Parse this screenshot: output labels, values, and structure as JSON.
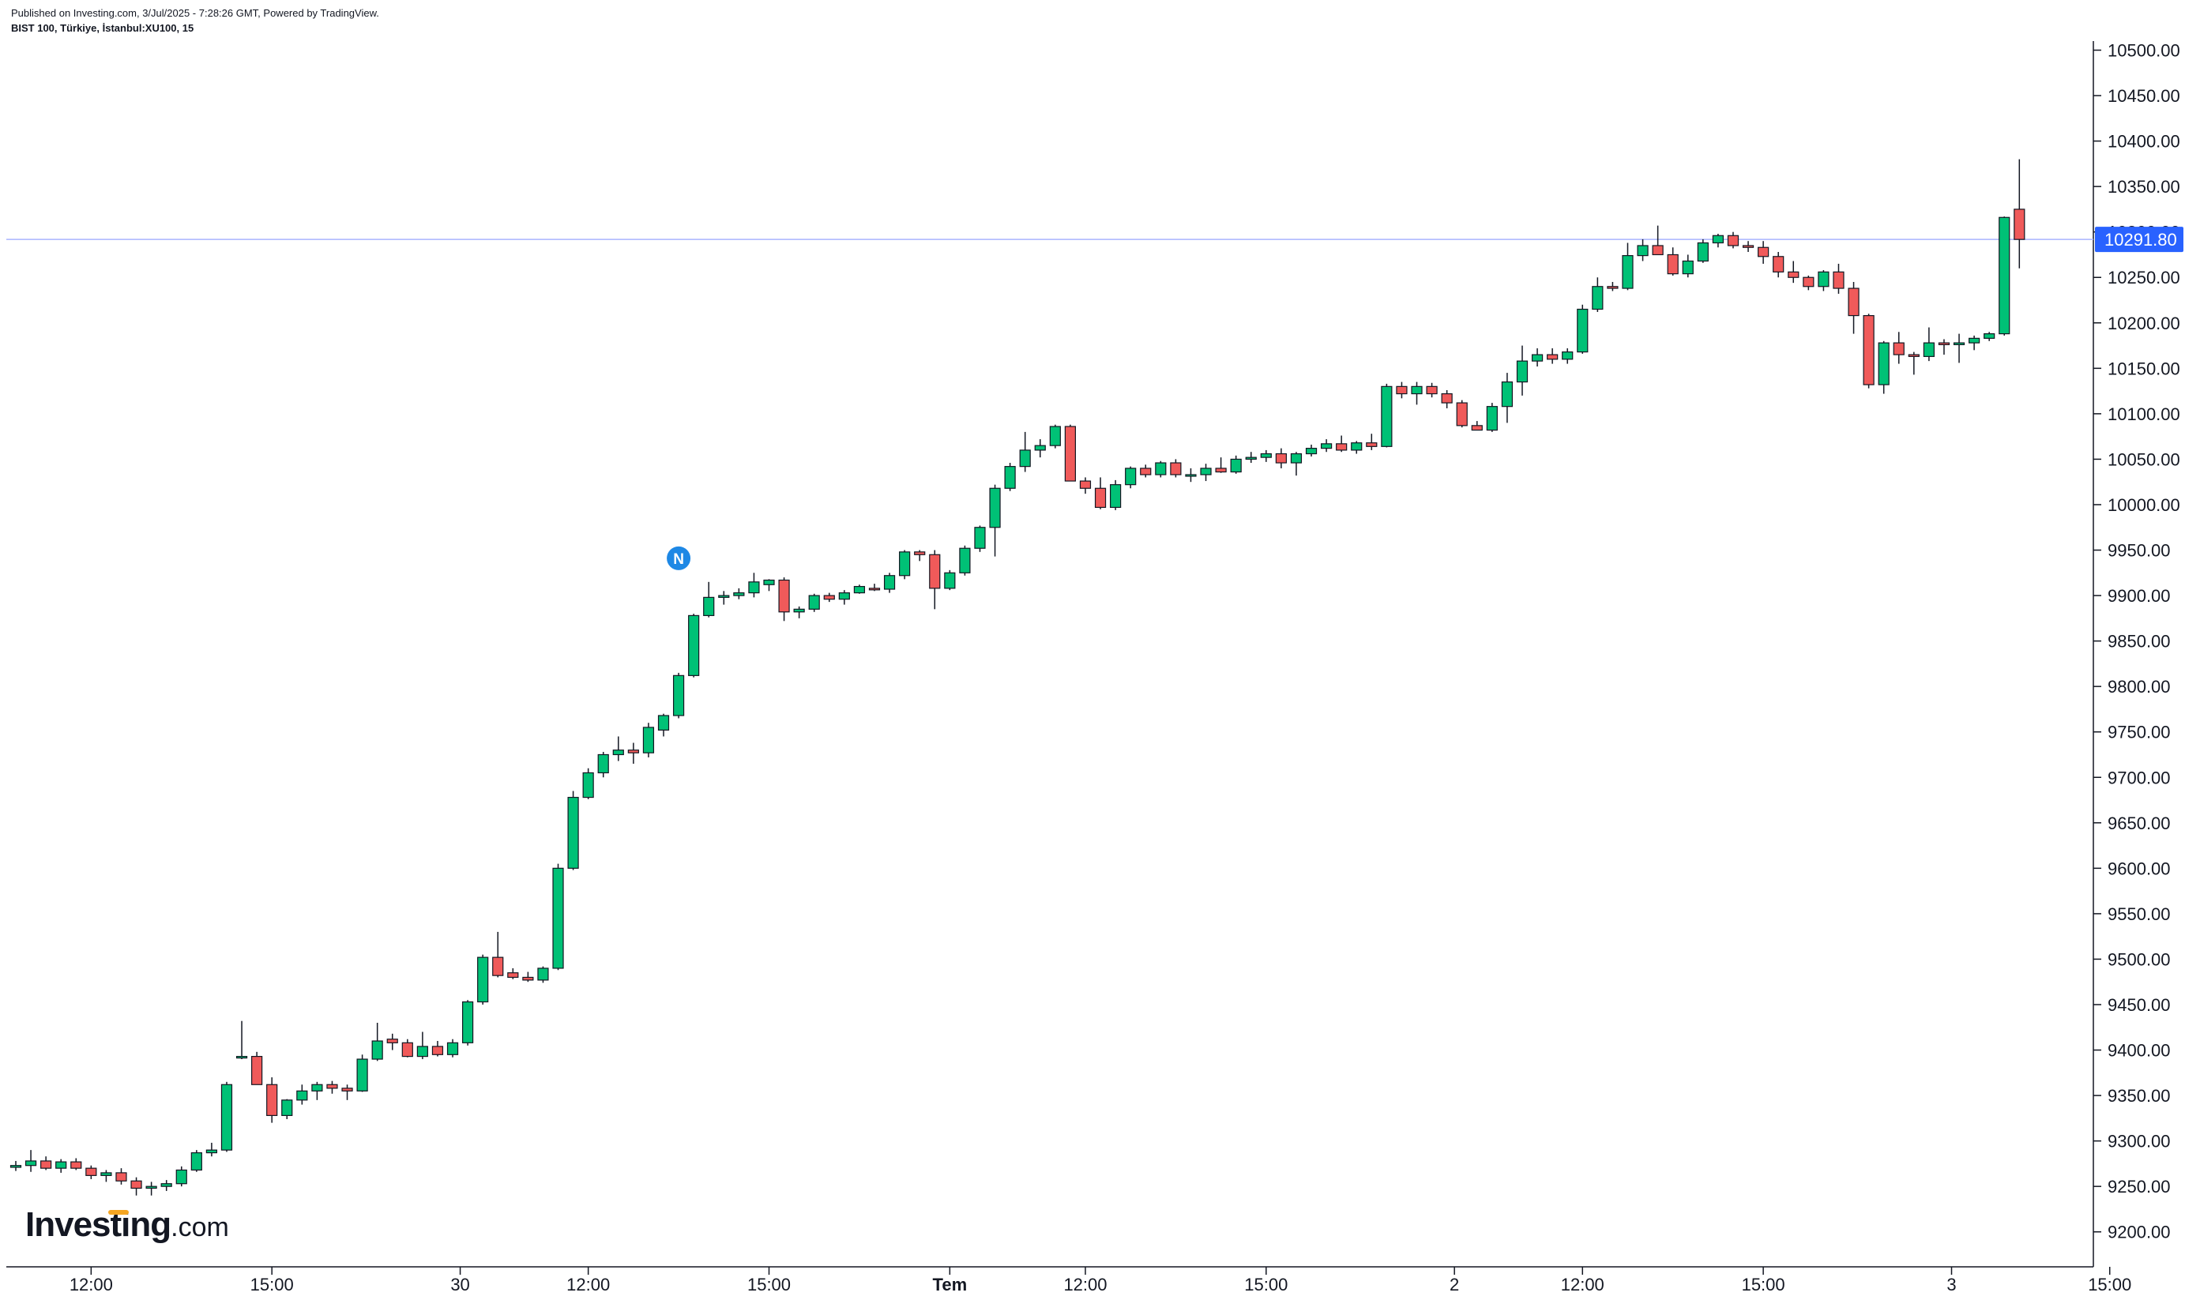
{
  "header": {
    "published": "Published on Investing.com, 3/Jul/2025 - 7:28:26 GMT, Powered by TradingView.",
    "symbol": "BIST 100, Türkiye, İstanbul:XU100, 15"
  },
  "logo": {
    "word": "Investing",
    "tld": ".com"
  },
  "colors": {
    "up": "#089981",
    "upFill": "#00c176",
    "down": "#d62d2d",
    "downFill": "#f05a5a",
    "priceLine": "#aab4ff",
    "priceTag": "#2962ff",
    "marker": "#1e88e5"
  },
  "chart_data": {
    "type": "candlestick",
    "title": "",
    "ylim": [
      9165,
      10510
    ],
    "y_ticks": [
      9200,
      9250,
      9300,
      9350,
      9400,
      9450,
      9500,
      9550,
      9600,
      9650,
      9700,
      9750,
      9800,
      9850,
      9900,
      9950,
      10000,
      10050,
      10100,
      10150,
      10200,
      10250,
      10300,
      10350,
      10400,
      10450,
      10500
    ],
    "y_tick_labels": [
      "9200.00",
      "9250.00",
      "9300.00",
      "9350.00",
      "9400.00",
      "9450.00",
      "9500.00",
      "9550.00",
      "9600.00",
      "9650.00",
      "9700.00",
      "9750.00",
      "9800.00",
      "9850.00",
      "9900.00",
      "9950.00",
      "10000.00",
      "10050.00",
      "10100.00",
      "10150.00",
      "10200.00",
      "10250.00",
      "10300.00",
      "10350.00",
      "10400.00",
      "10450.00",
      "10500.00"
    ],
    "x_ticks": [
      {
        "label": "12:00",
        "index": 5,
        "bold": false
      },
      {
        "label": "15:00",
        "index": 17,
        "bold": false
      },
      {
        "label": "30",
        "index": 29.5,
        "bold": false
      },
      {
        "label": "12:00",
        "index": 38,
        "bold": false
      },
      {
        "label": "15:00",
        "index": 50,
        "bold": false
      },
      {
        "label": "Tem",
        "index": 62,
        "bold": true
      },
      {
        "label": "12:00",
        "index": 71,
        "bold": false
      },
      {
        "label": "15:00",
        "index": 83,
        "bold": false
      },
      {
        "label": "2",
        "index": 95.5,
        "bold": false
      },
      {
        "label": "12:00",
        "index": 104,
        "bold": false
      },
      {
        "label": "15:00",
        "index": 116,
        "bold": false
      },
      {
        "label": "3",
        "index": 128.5,
        "bold": false
      },
      {
        "label": "15:00",
        "index": 139,
        "bold": false
      }
    ],
    "last_price": 10291.8,
    "last_price_label": "10291.80",
    "news_marker": {
      "label": "N",
      "index": 44,
      "price": 9941
    },
    "ohlc": [
      [
        9271,
        9278,
        9267,
        9273
      ],
      [
        9273,
        9290,
        9266,
        9278
      ],
      [
        9278,
        9283,
        9268,
        9270
      ],
      [
        9270,
        9280,
        9265,
        9277
      ],
      [
        9277,
        9281,
        9268,
        9270
      ],
      [
        9270,
        9273,
        9258,
        9262
      ],
      [
        9262,
        9268,
        9255,
        9265
      ],
      [
        9265,
        9270,
        9252,
        9256
      ],
      [
        9256,
        9260,
        9240,
        9248
      ],
      [
        9248,
        9255,
        9240,
        9250
      ],
      [
        9250,
        9257,
        9245,
        9253
      ],
      [
        9253,
        9272,
        9250,
        9268
      ],
      [
        9268,
        9290,
        9266,
        9287
      ],
      [
        9287,
        9298,
        9283,
        9290
      ],
      [
        9290,
        9365,
        9288,
        9362
      ],
      [
        9393,
        9432,
        9390,
        9393
      ],
      [
        9393,
        9398,
        9365,
        9362
      ],
      [
        9362,
        9370,
        9320,
        9328
      ],
      [
        9328,
        9346,
        9324,
        9345
      ],
      [
        9345,
        9362,
        9340,
        9355
      ],
      [
        9355,
        9365,
        9345,
        9362
      ],
      [
        9362,
        9366,
        9352,
        9358
      ],
      [
        9358,
        9362,
        9345,
        9355
      ],
      [
        9355,
        9395,
        9354,
        9390
      ],
      [
        9390,
        9430,
        9388,
        9410
      ],
      [
        9412,
        9418,
        9400,
        9408
      ],
      [
        9408,
        9412,
        9392,
        9393
      ],
      [
        9393,
        9420,
        9390,
        9404
      ],
      [
        9404,
        9410,
        9393,
        9395
      ],
      [
        9395,
        9412,
        9392,
        9408
      ],
      [
        9408,
        9455,
        9405,
        9453
      ],
      [
        9453,
        9505,
        9450,
        9502
      ],
      [
        9502,
        9530,
        9480,
        9482
      ],
      [
        9485,
        9490,
        9478,
        9480
      ],
      [
        9480,
        9486,
        9475,
        9477
      ],
      [
        9477,
        9492,
        9474,
        9490
      ],
      [
        9490,
        9605,
        9488,
        9600
      ],
      [
        9600,
        9685,
        9598,
        9678
      ],
      [
        9678,
        9710,
        9676,
        9705
      ],
      [
        9705,
        9728,
        9700,
        9725
      ],
      [
        9725,
        9745,
        9718,
        9730
      ],
      [
        9730,
        9738,
        9715,
        9727
      ],
      [
        9727,
        9760,
        9722,
        9755
      ],
      [
        9752,
        9770,
        9745,
        9768
      ],
      [
        9768,
        9815,
        9765,
        9812
      ],
      [
        9812,
        9880,
        9810,
        9878
      ],
      [
        9878,
        9915,
        9876,
        9898
      ],
      [
        9898,
        9905,
        9890,
        9900
      ],
      [
        9900,
        9908,
        9896,
        9903
      ],
      [
        9903,
        9925,
        9898,
        9915
      ],
      [
        9912,
        9918,
        9905,
        9917
      ],
      [
        9917,
        9920,
        9872,
        9882
      ],
      [
        9882,
        9888,
        9875,
        9885
      ],
      [
        9885,
        9902,
        9882,
        9900
      ],
      [
        9900,
        9903,
        9893,
        9896
      ],
      [
        9896,
        9906,
        9890,
        9903
      ],
      [
        9903,
        9912,
        9902,
        9910
      ],
      [
        9908,
        9913,
        9905,
        9907
      ],
      [
        9907,
        9925,
        9903,
        9922
      ],
      [
        9922,
        9950,
        9918,
        9948
      ],
      [
        9948,
        9950,
        9938,
        9945
      ],
      [
        9945,
        9950,
        9885,
        9908
      ],
      [
        9908,
        9928,
        9906,
        9925
      ],
      [
        9925,
        9955,
        9922,
        9952
      ],
      [
        9952,
        9977,
        9948,
        9975
      ],
      [
        9975,
        10022,
        9943,
        10018
      ],
      [
        10018,
        10046,
        10015,
        10042
      ],
      [
        10042,
        10080,
        10036,
        10060
      ],
      [
        10060,
        10072,
        10052,
        10065
      ],
      [
        10065,
        10088,
        10062,
        10086
      ],
      [
        10086,
        10088,
        10028,
        10026
      ],
      [
        10026,
        10030,
        10012,
        10018
      ],
      [
        10018,
        10030,
        9995,
        9997
      ],
      [
        9997,
        10027,
        9994,
        10022
      ],
      [
        10022,
        10042,
        10018,
        10040
      ],
      [
        10040,
        10044,
        10030,
        10033
      ],
      [
        10033,
        10048,
        10030,
        10046
      ],
      [
        10046,
        10050,
        10030,
        10033
      ],
      [
        10033,
        10040,
        10025,
        10033
      ],
      [
        10033,
        10045,
        10026,
        10040
      ],
      [
        10040,
        10052,
        10035,
        10036
      ],
      [
        10036,
        10054,
        10034,
        10050
      ],
      [
        10050,
        10058,
        10046,
        10052
      ],
      [
        10052,
        10060,
        10047,
        10056
      ],
      [
        10056,
        10062,
        10040,
        10046
      ],
      [
        10046,
        10058,
        10032,
        10056
      ],
      [
        10056,
        10066,
        10053,
        10062
      ],
      [
        10062,
        10072,
        10058,
        10067
      ],
      [
        10067,
        10076,
        10058,
        10060
      ],
      [
        10060,
        10070,
        10056,
        10068
      ],
      [
        10068,
        10078,
        10060,
        10064
      ],
      [
        10064,
        10133,
        10063,
        10130
      ],
      [
        10130,
        10135,
        10117,
        10122
      ],
      [
        10122,
        10135,
        10110,
        10130
      ],
      [
        10130,
        10134,
        10118,
        10122
      ],
      [
        10122,
        10126,
        10106,
        10112
      ],
      [
        10112,
        10115,
        10085,
        10087
      ],
      [
        10087,
        10092,
        10082,
        10082
      ],
      [
        10082,
        10112,
        10080,
        10108
      ],
      [
        10108,
        10145,
        10090,
        10135
      ],
      [
        10135,
        10175,
        10120,
        10158
      ],
      [
        10158,
        10172,
        10152,
        10165
      ],
      [
        10165,
        10172,
        10155,
        10160
      ],
      [
        10160,
        10172,
        10155,
        10168
      ],
      [
        10168,
        10220,
        10166,
        10215
      ],
      [
        10215,
        10250,
        10212,
        10240
      ],
      [
        10240,
        10245,
        10235,
        10238
      ],
      [
        10238,
        10288,
        10236,
        10274
      ],
      [
        10274,
        10292,
        10268,
        10285
      ],
      [
        10285,
        10307,
        10275,
        10275
      ],
      [
        10275,
        10283,
        10252,
        10254
      ],
      [
        10254,
        10275,
        10250,
        10268
      ],
      [
        10268,
        10292,
        10266,
        10288
      ],
      [
        10288,
        10298,
        10283,
        10296
      ],
      [
        10296,
        10300,
        10282,
        10285
      ],
      [
        10285,
        10290,
        10278,
        10283
      ],
      [
        10283,
        10290,
        10265,
        10273
      ],
      [
        10273,
        10278,
        10250,
        10256
      ],
      [
        10256,
        10268,
        10244,
        10250
      ],
      [
        10250,
        10252,
        10236,
        10240
      ],
      [
        10240,
        10258,
        10235,
        10256
      ],
      [
        10256,
        10265,
        10232,
        10238
      ],
      [
        10238,
        10245,
        10188,
        10208
      ],
      [
        10208,
        10210,
        10128,
        10132
      ],
      [
        10132,
        10180,
        10122,
        10178
      ],
      [
        10178,
        10190,
        10155,
        10165
      ],
      [
        10165,
        10168,
        10143,
        10163
      ],
      [
        10163,
        10195,
        10158,
        10178
      ],
      [
        10178,
        10182,
        10165,
        10176
      ],
      [
        10176,
        10188,
        10156,
        10178
      ],
      [
        10178,
        10186,
        10170,
        10183
      ],
      [
        10183,
        10190,
        10180,
        10188
      ],
      [
        10188,
        10317,
        10186,
        10316
      ],
      [
        10325,
        10380,
        10260,
        10291.8
      ]
    ]
  }
}
